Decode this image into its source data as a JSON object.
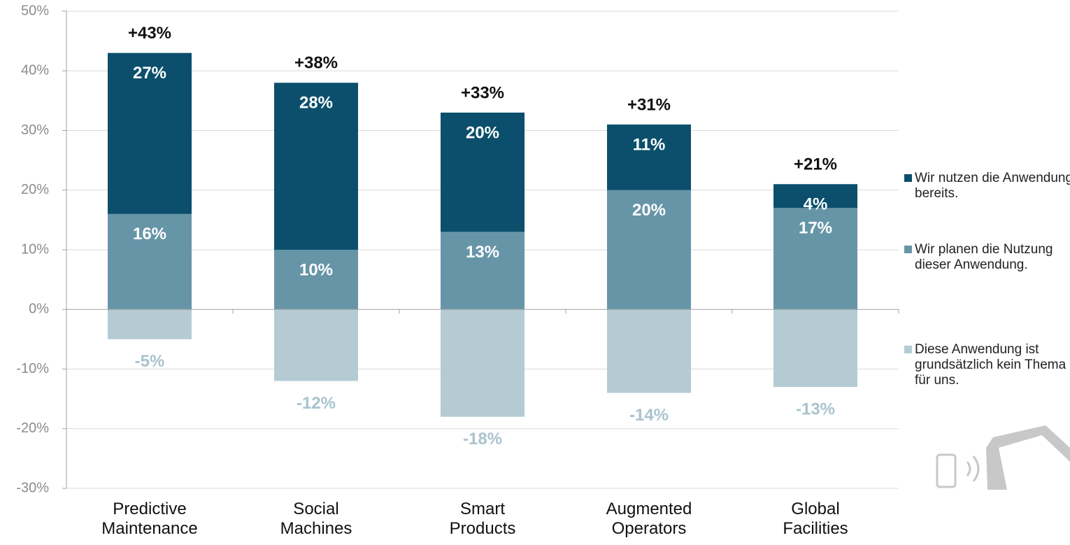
{
  "chart_data": {
    "type": "stacked_bar",
    "categories": [
      "Predictive Maintenance",
      "Social Machines",
      "Smart Products",
      "Augmented Operators",
      "Global Facilities"
    ],
    "series": [
      {
        "name": "Wir nutzen die Anwendung bereits.",
        "color": "#0b4f6c",
        "values": [
          27,
          28,
          20,
          11,
          4
        ],
        "value_labels": [
          "27%",
          "28%",
          "20%",
          "11%",
          "4%"
        ]
      },
      {
        "name": "Wir planen die Nutzung dieser Anwendung.",
        "color": "#6795a8",
        "values": [
          16,
          10,
          13,
          20,
          17
        ],
        "value_labels": [
          "16%",
          "10%",
          "13%",
          "20%",
          "17%"
        ]
      },
      {
        "name": "Diese Anwendung ist grundsätzlich kein Thema für uns.",
        "color": "#b4cbd4",
        "values": [
          -5,
          -12,
          -18,
          -14,
          -13
        ],
        "value_labels": [
          "-5%",
          "-12%",
          "-18%",
          "-14%",
          "-13%"
        ]
      }
    ],
    "totals": [
      43,
      38,
      33,
      31,
      21
    ],
    "total_labels": [
      "+43%",
      "+38%",
      "+33%",
      "+31%",
      "+21%"
    ],
    "ylim": [
      -30,
      50
    ],
    "yticks": [
      {
        "value": -30,
        "label": "-30%"
      },
      {
        "value": -20,
        "label": "-20%"
      },
      {
        "value": -10,
        "label": "-10%"
      },
      {
        "value": 0,
        "label": "0%"
      },
      {
        "value": 10,
        "label": "10%"
      },
      {
        "value": 20,
        "label": "20%"
      },
      {
        "value": 30,
        "label": "30%"
      },
      {
        "value": 40,
        "label": "40%"
      },
      {
        "value": 50,
        "label": "50%"
      }
    ],
    "grid": true,
    "legend": "right"
  }
}
